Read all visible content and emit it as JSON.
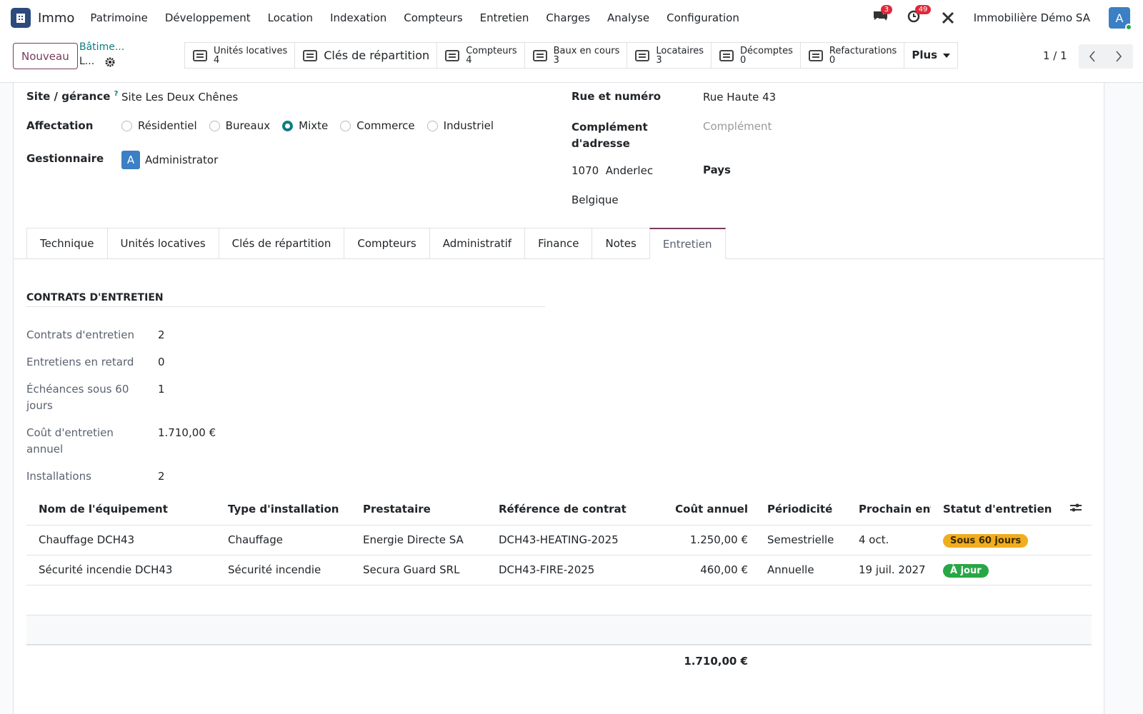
{
  "navbar": {
    "app": "Immo",
    "menu": [
      "Patrimoine",
      "Développement",
      "Location",
      "Indexation",
      "Compteurs",
      "Entretien",
      "Charges",
      "Analyse",
      "Configuration"
    ],
    "messages_count": 3,
    "activities_count": 49,
    "company": "Immobilière Démo SA",
    "avatar": "A"
  },
  "control": {
    "new_button": "Nouveau",
    "breadcrumb": "Bâtime...",
    "record": "L...",
    "smart_buttons": [
      {
        "label": "Unités locatives",
        "count": 4
      },
      {
        "label": "Clés de répartition"
      },
      {
        "label": "Compteurs",
        "count": 4
      },
      {
        "label": "Baux en cours",
        "count": 3
      },
      {
        "label": "Locataires",
        "count": 3
      },
      {
        "label": "Décomptes",
        "count": 0
      },
      {
        "label": "Refacturations",
        "count": 0
      }
    ],
    "more": "Plus",
    "pager": "1 / 1"
  },
  "form": {
    "site": {
      "label": "Site / gérance",
      "help": "?",
      "value": "Site Les Deux Chênes"
    },
    "affectation": {
      "label": "Affectation",
      "options": [
        "Résidentiel",
        "Bureaux",
        "Mixte",
        "Commerce",
        "Industriel"
      ],
      "selected": 2
    },
    "manager": {
      "label": "Gestionnaire",
      "initial": "A",
      "value": "Administrator"
    },
    "address": {
      "street_label": "Rue et numéro",
      "street": "Rue Haute 43",
      "complement_label": "Complément d'adresse",
      "complement_placeholder": "Complément",
      "zip": "1070",
      "city": "Anderlec",
      "country_label": "Pays",
      "country": "Belgique"
    }
  },
  "tabs": {
    "items": [
      "Technique",
      "Unités locatives",
      "Clés de répartition",
      "Compteurs",
      "Administratif",
      "Finance",
      "Notes",
      "Entretien"
    ],
    "active": 7
  },
  "section": {
    "title": "CONTRATS D'ENTRETIEN",
    "stats": [
      {
        "label": "Contrats d'entretien",
        "value": 2
      },
      {
        "label": "Entretiens en retard",
        "value": 0
      },
      {
        "label": "Échéances sous 60 jours",
        "value": 1
      },
      {
        "label": "Coût d'entretien annuel",
        "value": "1.710,00 €"
      },
      {
        "label": "Installations",
        "value": 2
      }
    ]
  },
  "table": {
    "columns": [
      "Nom de l'équipement",
      "Type d'installation",
      "Prestataire",
      "Référence de contrat",
      "Coût annuel",
      "Périodicité",
      "Prochain ent...",
      "Statut d'entretien"
    ],
    "rows": [
      [
        "Chauffage DCH43",
        "Chauffage",
        "Energie Directe SA",
        "DCH43-HEATING-2025",
        "1.250,00 €",
        "Semestrielle",
        "4 oct.",
        "Sous 60 jours"
      ],
      [
        "Sécurité incendie DCH43",
        "Sécurité incendie",
        "Secura Guard SRL",
        "DCH43-FIRE-2025",
        "460,00 €",
        "Annuelle",
        "19 juil. 2027",
        "À jour"
      ]
    ],
    "status_colors": [
      "#f0ad1e",
      "#28a745"
    ],
    "status_text_colors": [
      "#3a2a00",
      "#ffffff"
    ],
    "total": "1.710,00 €"
  }
}
